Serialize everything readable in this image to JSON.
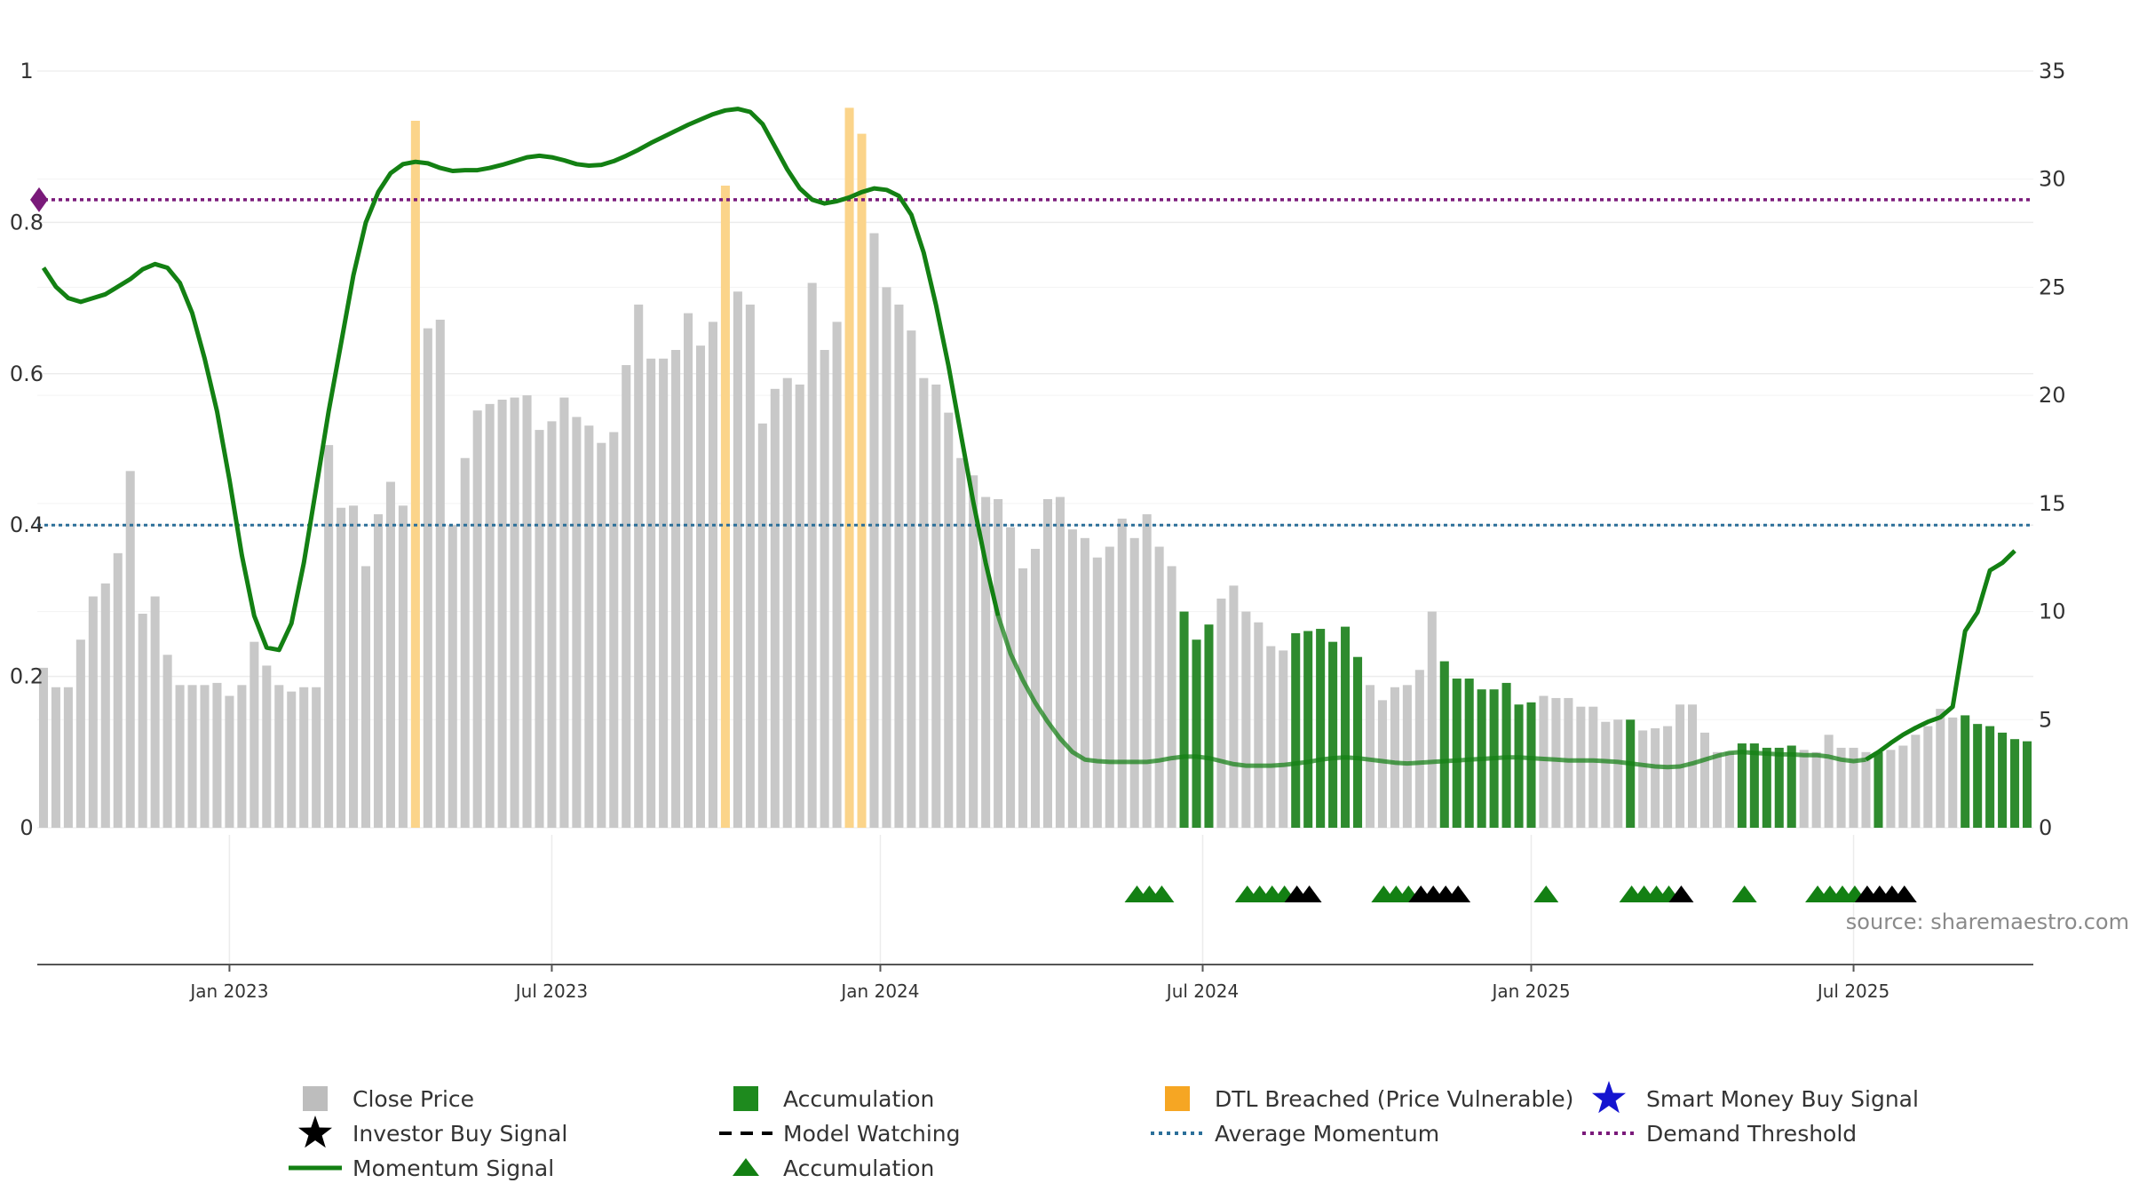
{
  "source_note": "source: sharemaestro.com",
  "colors": {
    "close": "#c8c8c8",
    "accumulation": "#2e8b2e",
    "dtl": "#fbd48a",
    "momentum": "#138013",
    "average": "#2b6f99",
    "demand": "#7a1a7a",
    "marker_green": "#138013",
    "marker_black": "#000000",
    "smart_money": "#1515d0"
  },
  "chart_data": {
    "type": "bar",
    "x_ticks": [
      "Jan 2023",
      "Jul 2023",
      "Jan 2024",
      "Jul 2024",
      "Jan 2025",
      "Jul 2025"
    ],
    "x_tick_weeks": [
      15,
      41,
      67.5,
      93.5,
      120,
      146
    ],
    "y_left": {
      "lim": [
        0,
        1
      ],
      "ticks": [
        0,
        0.2,
        0.4,
        0.6,
        0.8,
        1
      ],
      "tick_labels": [
        "0",
        "0.2",
        "0.4",
        "0.6",
        "0.8",
        "1"
      ]
    },
    "y_right": {
      "lim": [
        0,
        35
      ],
      "ticks": [
        0,
        5,
        10,
        15,
        20,
        25,
        30,
        35
      ],
      "tick_labels": [
        "0",
        "5",
        "10",
        "15",
        "20",
        "25",
        "30",
        "35"
      ]
    },
    "average_momentum": 0.4,
    "demand_threshold": 0.83,
    "close_price": [
      7.4,
      6.5,
      6.5,
      8.7,
      10.7,
      11.3,
      12.7,
      16.5,
      9.9,
      10.7,
      8,
      6.6,
      6.6,
      6.6,
      6.7,
      6.1,
      6.6,
      8.6,
      7.5,
      6.6,
      6.3,
      6.5,
      6.5,
      17.7,
      14.8,
      14.9,
      12.1,
      14.5,
      16,
      14.9,
      19.8,
      23.1,
      23.5,
      14,
      17.1,
      19.3,
      19.6,
      19.8,
      19.9,
      20,
      18.4,
      18.8,
      19.9,
      19,
      18.6,
      17.8,
      18.3,
      21.4,
      24.2,
      21.7,
      21.7,
      22.1,
      23.8,
      22.3,
      23.4,
      23.9,
      24.8,
      24.2,
      18.7,
      20.3,
      20.8,
      20.5,
      25.2,
      22.1,
      23.4,
      24.4,
      25.1,
      27.5,
      25,
      24.2,
      23,
      20.8,
      20.5,
      19.2,
      17.1,
      16.3,
      15.3,
      15.2,
      13.9,
      12,
      12.9,
      15.2,
      15.3,
      13.8,
      13.4,
      12.5,
      13,
      14.3,
      13.4,
      14.5,
      13,
      12.1,
      10,
      8.7,
      9.4,
      10.6,
      11.2,
      10,
      9.5,
      8.4,
      8.2,
      9,
      9.1,
      9.2,
      8.6,
      9.3,
      7.9,
      6.6,
      5.9,
      6.5,
      6.6,
      7.3,
      10,
      7.7,
      6.9,
      6.9,
      6.4,
      6.4,
      6.7,
      5.7,
      5.8,
      6.1,
      6,
      6,
      5.6,
      5.6,
      4.9,
      5,
      5,
      4.5,
      4.6,
      4.7,
      5.7,
      5.7,
      4.4,
      3.5,
      3.5,
      3.9,
      3.9,
      3.7,
      3.7,
      3.8,
      3.6,
      3.5,
      4.3,
      3.7,
      3.7,
      3.5,
      3.5,
      3.6,
      3.8,
      4.3,
      4.7,
      5.5,
      5.1,
      5.2,
      4.8,
      4.7,
      4.4,
      4.1,
      4
    ],
    "bar_kind": [
      "c",
      "c",
      "c",
      "c",
      "c",
      "c",
      "c",
      "c",
      "c",
      "c",
      "c",
      "c",
      "c",
      "c",
      "c",
      "c",
      "c",
      "c",
      "c",
      "c",
      "c",
      "c",
      "c",
      "c",
      "c",
      "c",
      "c",
      "c",
      "c",
      "c",
      "d",
      "c",
      "c",
      "c",
      "c",
      "c",
      "c",
      "c",
      "c",
      "c",
      "c",
      "c",
      "c",
      "c",
      "c",
      "c",
      "c",
      "c",
      "c",
      "c",
      "c",
      "c",
      "c",
      "c",
      "c",
      "d",
      "c",
      "c",
      "c",
      "c",
      "c",
      "c",
      "c",
      "c",
      "c",
      "d",
      "d",
      "c",
      "c",
      "c",
      "c",
      "c",
      "c",
      "c",
      "c",
      "c",
      "c",
      "c",
      "c",
      "c",
      "c",
      "c",
      "c",
      "c",
      "c",
      "c",
      "c",
      "c",
      "c",
      "c",
      "c",
      "c",
      "a",
      "a",
      "a",
      "c",
      "c",
      "c",
      "c",
      "c",
      "c",
      "a",
      "a",
      "a",
      "a",
      "a",
      "a",
      "c",
      "c",
      "c",
      "c",
      "c",
      "c",
      "a",
      "a",
      "a",
      "a",
      "a",
      "a",
      "a",
      "a",
      "c",
      "c",
      "c",
      "c",
      "c",
      "c",
      "c",
      "a",
      "c",
      "c",
      "c",
      "c",
      "c",
      "c",
      "c",
      "c",
      "a",
      "a",
      "a",
      "a",
      "a",
      "c",
      "c",
      "c",
      "c",
      "c",
      "c",
      "a",
      "c",
      "c",
      "c",
      "c",
      "c",
      "c",
      "a",
      "a",
      "a",
      "a",
      "a",
      "a",
      "a",
      "a",
      "c",
      "c",
      "c",
      "c",
      "c"
    ],
    "dtl_heights": {
      "30": 32.7,
      "55": 29.7,
      "65": 33.3,
      "66": 32.1
    },
    "momentum": [
      [
        0,
        0.74
      ],
      [
        1,
        0.715
      ],
      [
        2,
        0.7
      ],
      [
        3,
        0.695
      ],
      [
        4,
        0.7
      ],
      [
        5,
        0.705
      ],
      [
        6,
        0.715
      ],
      [
        7,
        0.725
      ],
      [
        8,
        0.738
      ],
      [
        9,
        0.745
      ],
      [
        10,
        0.74
      ],
      [
        11,
        0.72
      ],
      [
        12,
        0.68
      ],
      [
        13,
        0.62
      ],
      [
        14,
        0.55
      ],
      [
        15,
        0.46
      ],
      [
        16,
        0.36
      ],
      [
        17,
        0.28
      ],
      [
        18,
        0.238
      ],
      [
        19,
        0.235
      ],
      [
        20,
        0.27
      ],
      [
        21,
        0.35
      ],
      [
        22,
        0.45
      ],
      [
        23,
        0.55
      ],
      [
        24,
        0.64
      ],
      [
        25,
        0.73
      ],
      [
        26,
        0.8
      ],
      [
        27,
        0.84
      ],
      [
        28,
        0.865
      ],
      [
        29,
        0.877
      ],
      [
        30,
        0.88
      ],
      [
        31,
        0.878
      ],
      [
        32,
        0.872
      ],
      [
        33,
        0.868
      ],
      [
        34,
        0.869
      ],
      [
        35,
        0.869
      ],
      [
        36,
        0.872
      ],
      [
        37,
        0.876
      ],
      [
        38,
        0.881
      ],
      [
        39,
        0.886
      ],
      [
        40,
        0.888
      ],
      [
        41,
        0.886
      ],
      [
        42,
        0.882
      ],
      [
        43,
        0.877
      ],
      [
        44,
        0.875
      ],
      [
        45,
        0.876
      ],
      [
        46,
        0.881
      ],
      [
        47,
        0.888
      ],
      [
        48,
        0.896
      ],
      [
        49,
        0.905
      ],
      [
        50,
        0.913
      ],
      [
        51,
        0.921
      ],
      [
        52,
        0.929
      ],
      [
        53,
        0.936
      ],
      [
        54,
        0.943
      ],
      [
        55,
        0.948
      ],
      [
        56,
        0.95
      ],
      [
        57,
        0.946
      ],
      [
        58,
        0.93
      ],
      [
        59,
        0.9
      ],
      [
        60,
        0.87
      ],
      [
        61,
        0.845
      ],
      [
        62,
        0.83
      ],
      [
        63,
        0.825
      ],
      [
        64,
        0.828
      ],
      [
        65,
        0.833
      ],
      [
        66,
        0.84
      ],
      [
        67,
        0.845
      ],
      [
        68,
        0.843
      ],
      [
        69,
        0.835
      ],
      [
        70,
        0.81
      ],
      [
        71,
        0.76
      ],
      [
        72,
        0.69
      ],
      [
        73,
        0.61
      ],
      [
        74,
        0.52
      ],
      [
        75,
        0.43
      ],
      [
        76,
        0.35
      ],
      [
        77,
        0.28
      ],
      [
        78,
        0.23
      ],
      [
        79,
        0.195
      ],
      [
        80,
        0.165
      ],
      [
        81,
        0.14
      ],
      [
        82,
        0.118
      ],
      [
        83,
        0.1
      ],
      [
        84,
        0.09
      ],
      [
        85,
        0.088
      ],
      [
        86,
        0.087
      ],
      [
        87,
        0.087
      ],
      [
        88,
        0.087
      ],
      [
        89,
        0.087
      ],
      [
        90,
        0.089
      ],
      [
        91,
        0.092
      ],
      [
        92,
        0.094
      ],
      [
        93,
        0.094
      ],
      [
        94,
        0.092
      ],
      [
        95,
        0.088
      ],
      [
        96,
        0.084
      ],
      [
        97,
        0.082
      ],
      [
        98,
        0.082
      ],
      [
        99,
        0.082
      ],
      [
        100,
        0.083
      ],
      [
        101,
        0.085
      ],
      [
        102,
        0.087
      ],
      [
        103,
        0.09
      ],
      [
        104,
        0.092
      ],
      [
        105,
        0.093
      ],
      [
        106,
        0.092
      ],
      [
        107,
        0.09
      ],
      [
        108,
        0.088
      ],
      [
        109,
        0.086
      ],
      [
        110,
        0.085
      ],
      [
        111,
        0.086
      ],
      [
        112,
        0.087
      ],
      [
        113,
        0.088
      ],
      [
        114,
        0.089
      ],
      [
        115,
        0.09
      ],
      [
        116,
        0.091
      ],
      [
        117,
        0.092
      ],
      [
        118,
        0.093
      ],
      [
        119,
        0.093
      ],
      [
        120,
        0.092
      ],
      [
        121,
        0.091
      ],
      [
        122,
        0.09
      ],
      [
        123,
        0.089
      ],
      [
        124,
        0.089
      ],
      [
        125,
        0.089
      ],
      [
        126,
        0.088
      ],
      [
        127,
        0.087
      ],
      [
        128,
        0.085
      ],
      [
        129,
        0.083
      ],
      [
        130,
        0.081
      ],
      [
        131,
        0.08
      ],
      [
        132,
        0.081
      ],
      [
        133,
        0.085
      ],
      [
        134,
        0.09
      ],
      [
        135,
        0.095
      ],
      [
        136,
        0.099
      ],
      [
        137,
        0.1
      ],
      [
        138,
        0.099
      ],
      [
        139,
        0.098
      ],
      [
        140,
        0.097
      ],
      [
        141,
        0.097
      ],
      [
        142,
        0.096
      ],
      [
        143,
        0.096
      ],
      [
        144,
        0.094
      ],
      [
        145,
        0.09
      ],
      [
        146,
        0.088
      ],
      [
        147,
        0.09
      ],
      [
        148,
        0.1
      ],
      [
        149,
        0.112
      ],
      [
        150,
        0.123
      ],
      [
        151,
        0.132
      ],
      [
        152,
        0.14
      ],
      [
        153,
        0.146
      ],
      [
        154,
        0.16
      ],
      [
        155,
        0.26
      ],
      [
        156,
        0.285
      ],
      [
        157,
        0.34
      ],
      [
        158,
        0.35
      ],
      [
        159,
        0.366
      ]
    ],
    "strong_momentum_until_week": 77,
    "markers": [
      {
        "week": 88.2,
        "color": "green"
      },
      {
        "week": 89.2,
        "color": "green"
      },
      {
        "week": 90.2,
        "color": "green"
      },
      {
        "week": 97.1,
        "color": "green"
      },
      {
        "week": 98.1,
        "color": "green"
      },
      {
        "week": 99.1,
        "color": "green"
      },
      {
        "week": 100.1,
        "color": "green"
      },
      {
        "week": 101.1,
        "color": "black"
      },
      {
        "week": 102.1,
        "color": "black"
      },
      {
        "week": 108.1,
        "color": "green"
      },
      {
        "week": 109.1,
        "color": "green"
      },
      {
        "week": 110.1,
        "color": "green"
      },
      {
        "week": 111.1,
        "color": "black"
      },
      {
        "week": 112.1,
        "color": "black"
      },
      {
        "week": 113.1,
        "color": "black"
      },
      {
        "week": 114.1,
        "color": "black"
      },
      {
        "week": 121.2,
        "color": "green"
      },
      {
        "week": 128.1,
        "color": "green"
      },
      {
        "week": 129.1,
        "color": "green"
      },
      {
        "week": 130.1,
        "color": "green"
      },
      {
        "week": 131.1,
        "color": "green"
      },
      {
        "week": 132.1,
        "color": "black"
      },
      {
        "week": 137.2,
        "color": "green"
      },
      {
        "week": 143.1,
        "color": "green"
      },
      {
        "week": 144.1,
        "color": "green"
      },
      {
        "week": 145.1,
        "color": "green"
      },
      {
        "week": 146.1,
        "color": "green"
      },
      {
        "week": 147.1,
        "color": "black"
      },
      {
        "week": 148.1,
        "color": "black"
      },
      {
        "week": 149.1,
        "color": "black"
      },
      {
        "week": 150.1,
        "color": "black"
      }
    ],
    "legend": [
      {
        "label": "Close Price",
        "symbol": "square",
        "color": "#bdbdbd"
      },
      {
        "label": "Accumulation",
        "symbol": "square",
        "color": "#1e8a1e"
      },
      {
        "label": "DTL Breached (Price Vulnerable)",
        "symbol": "square",
        "color": "#f6a623"
      },
      {
        "label": "Smart Money Buy Signal",
        "symbol": "star",
        "color": "#1515d0"
      },
      {
        "label": "Investor Buy Signal",
        "symbol": "star",
        "color": "#000000"
      },
      {
        "label": "Model Watching",
        "symbol": "dash",
        "color": "#000000"
      },
      {
        "label": "Average Momentum",
        "symbol": "dot",
        "color": "#2b6f99"
      },
      {
        "label": "Demand Threshold",
        "symbol": "dot",
        "color": "#7a1a7a"
      },
      {
        "label": "Momentum Signal",
        "symbol": "line",
        "color": "#138013"
      },
      {
        "label": "Accumulation",
        "symbol": "triangle",
        "color": "#138013"
      }
    ]
  }
}
